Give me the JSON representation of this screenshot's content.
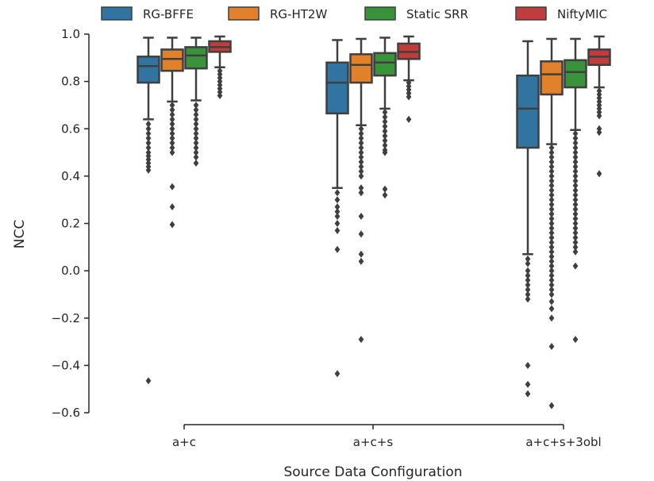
{
  "chart_data": {
    "type": "box",
    "title": "",
    "xlabel": "Source Data Configuration",
    "ylabel": "NCC",
    "ylim": [
      -0.62,
      1.0
    ],
    "yticks": [
      1.0,
      0.8,
      0.6,
      0.4,
      0.2,
      0.0,
      -0.2,
      -0.4,
      -0.6
    ],
    "ytick_labels": [
      "1.0",
      "0.8",
      "0.6",
      "0.4",
      "0.2",
      "0.0",
      "−0.2",
      "−0.4",
      "−0.6"
    ],
    "categories": [
      "a+c",
      "a+c+s",
      "a+c+s+3obl"
    ],
    "legend_position": "top",
    "grid": false,
    "series": [
      {
        "name": "RG-BFFE",
        "color": "#3274a1",
        "boxes": [
          {
            "whislo": 0.64,
            "q1": 0.795,
            "med": 0.865,
            "q3": 0.905,
            "whishi": 0.985,
            "fliers": [
              0.62,
              0.6,
              0.58,
              0.56,
              0.54,
              0.52,
              0.5,
              0.485,
              0.47,
              0.455,
              0.44,
              0.425,
              -0.465
            ]
          },
          {
            "whislo": 0.35,
            "q1": 0.665,
            "med": 0.795,
            "q3": 0.88,
            "whishi": 0.975,
            "fliers": [
              0.33,
              0.3,
              0.27,
              0.25,
              0.23,
              0.2,
              0.17,
              0.09,
              -0.435
            ]
          },
          {
            "whislo": 0.07,
            "q1": 0.52,
            "med": 0.685,
            "q3": 0.825,
            "whishi": 0.97,
            "fliers": [
              0.05,
              0.03,
              0.0,
              -0.02,
              -0.04,
              -0.06,
              -0.08,
              -0.1,
              -0.12,
              -0.4,
              -0.48,
              -0.52
            ]
          }
        ]
      },
      {
        "name": "RG-HT2W",
        "color": "#e1812c",
        "boxes": [
          {
            "whislo": 0.715,
            "q1": 0.845,
            "med": 0.895,
            "q3": 0.935,
            "whishi": 0.985,
            "fliers": [
              0.7,
              0.68,
              0.66,
              0.64,
              0.62,
              0.6,
              0.58,
              0.56,
              0.54,
              0.52,
              0.5,
              0.355,
              0.27,
              0.195
            ]
          },
          {
            "whislo": 0.615,
            "q1": 0.795,
            "med": 0.87,
            "q3": 0.915,
            "whishi": 0.98,
            "fliers": [
              0.6,
              0.58,
              0.56,
              0.54,
              0.52,
              0.5,
              0.48,
              0.46,
              0.44,
              0.42,
              0.4,
              0.35,
              0.33,
              0.23,
              0.155,
              0.07,
              0.04,
              -0.29
            ]
          },
          {
            "whislo": 0.535,
            "q1": 0.745,
            "med": 0.83,
            "q3": 0.885,
            "whishi": 0.98,
            "fliers": [
              0.52,
              0.5,
              0.48,
              0.46,
              0.44,
              0.42,
              0.4,
              0.38,
              0.36,
              0.34,
              0.32,
              0.3,
              0.28,
              0.26,
              0.24,
              0.22,
              0.2,
              0.18,
              0.16,
              0.14,
              0.12,
              0.1,
              0.08,
              0.06,
              0.04,
              0.02,
              0.0,
              -0.02,
              -0.04,
              -0.06,
              -0.08,
              -0.1,
              -0.13,
              -0.16,
              -0.2,
              -0.32,
              -0.57
            ]
          }
        ]
      },
      {
        "name": "Static SRR",
        "color": "#3a923a",
        "boxes": [
          {
            "whislo": 0.72,
            "q1": 0.855,
            "med": 0.91,
            "q3": 0.945,
            "whishi": 0.985,
            "fliers": [
              0.7,
              0.68,
              0.66,
              0.64,
              0.62,
              0.6,
              0.58,
              0.56,
              0.54,
              0.52,
              0.5,
              0.48,
              0.455
            ]
          },
          {
            "whislo": 0.685,
            "q1": 0.825,
            "med": 0.88,
            "q3": 0.92,
            "whishi": 0.985,
            "fliers": [
              0.67,
              0.65,
              0.63,
              0.61,
              0.59,
              0.57,
              0.55,
              0.53,
              0.51,
              0.5,
              0.345,
              0.32
            ]
          },
          {
            "whislo": 0.595,
            "q1": 0.775,
            "med": 0.84,
            "q3": 0.89,
            "whishi": 0.98,
            "fliers": [
              0.58,
              0.56,
              0.54,
              0.52,
              0.5,
              0.48,
              0.46,
              0.44,
              0.42,
              0.4,
              0.38,
              0.36,
              0.34,
              0.32,
              0.3,
              0.28,
              0.26,
              0.24,
              0.22,
              0.2,
              0.18,
              0.16,
              0.14,
              0.12,
              0.1,
              0.08,
              0.02,
              -0.29
            ]
          }
        ]
      },
      {
        "name": "NiftyMIC",
        "color": "#c03d3e",
        "boxes": [
          {
            "whislo": 0.86,
            "q1": 0.925,
            "med": 0.945,
            "q3": 0.97,
            "whishi": 0.99,
            "fliers": [
              0.845,
              0.83,
              0.815,
              0.8,
              0.785,
              0.77,
              0.755,
              0.74
            ]
          },
          {
            "whislo": 0.805,
            "q1": 0.895,
            "med": 0.925,
            "q3": 0.96,
            "whishi": 0.99,
            "fliers": [
              0.795,
              0.78,
              0.765,
              0.75,
              0.735,
              0.64
            ]
          },
          {
            "whislo": 0.775,
            "q1": 0.87,
            "med": 0.905,
            "q3": 0.935,
            "whishi": 0.99,
            "fliers": [
              0.76,
              0.745,
              0.73,
              0.715,
              0.7,
              0.685,
              0.67,
              0.655,
              0.6,
              0.585,
              0.41
            ]
          }
        ]
      }
    ]
  }
}
